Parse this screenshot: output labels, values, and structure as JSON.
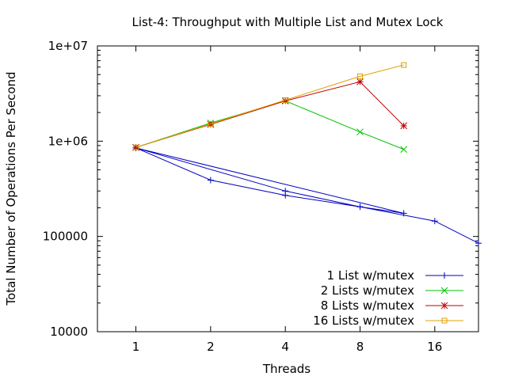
{
  "chart_data": {
    "type": "line",
    "title": "List-4: Throughput with Multiple List and Mutex Lock",
    "xlabel": "Threads",
    "ylabel": "Total Number of Operations Per Second",
    "x_scale": "log2",
    "y_scale": "log10",
    "xlim": [
      0.7,
      24
    ],
    "ylim": [
      10000,
      10000000
    ],
    "x_ticks": [
      1,
      2,
      4,
      8,
      16
    ],
    "x_tick_labels": [
      "1",
      "2",
      "4",
      "8",
      "16"
    ],
    "y_ticks": [
      10000,
      100000,
      1000000,
      10000000
    ],
    "y_tick_labels": [
      "10000",
      "100000",
      "1e+06",
      "1e+07"
    ],
    "legend_position": "bottom-right",
    "grid": false,
    "series": [
      {
        "name": "1 List w/mutex",
        "color": "#0000c0",
        "marker": "plus",
        "x": [
          1,
          2,
          4,
          8,
          12,
          1,
          4,
          8,
          16,
          24
        ],
        "y": [
          850000,
          390000,
          270000,
          205000,
          175000,
          850000,
          300000,
          205000,
          145000,
          85000
        ]
      },
      {
        "name": "2 Lists w/mutex",
        "color": "#00c000",
        "marker": "cross",
        "x": [
          1,
          2,
          4,
          8,
          12
        ],
        "y": [
          860000,
          1550000,
          2650000,
          1250000,
          820000
        ]
      },
      {
        "name": "8 Lists w/mutex",
        "color": "#c00000",
        "marker": "star",
        "x": [
          1,
          2,
          4,
          8,
          12
        ],
        "y": [
          860000,
          1500000,
          2650000,
          4200000,
          1450000
        ]
      },
      {
        "name": "16 Lists w/mutex",
        "color": "#e0a000",
        "marker": "square",
        "x": [
          1,
          2,
          4,
          8,
          12
        ],
        "y": [
          860000,
          1520000,
          2700000,
          4800000,
          6300000
        ]
      }
    ]
  }
}
